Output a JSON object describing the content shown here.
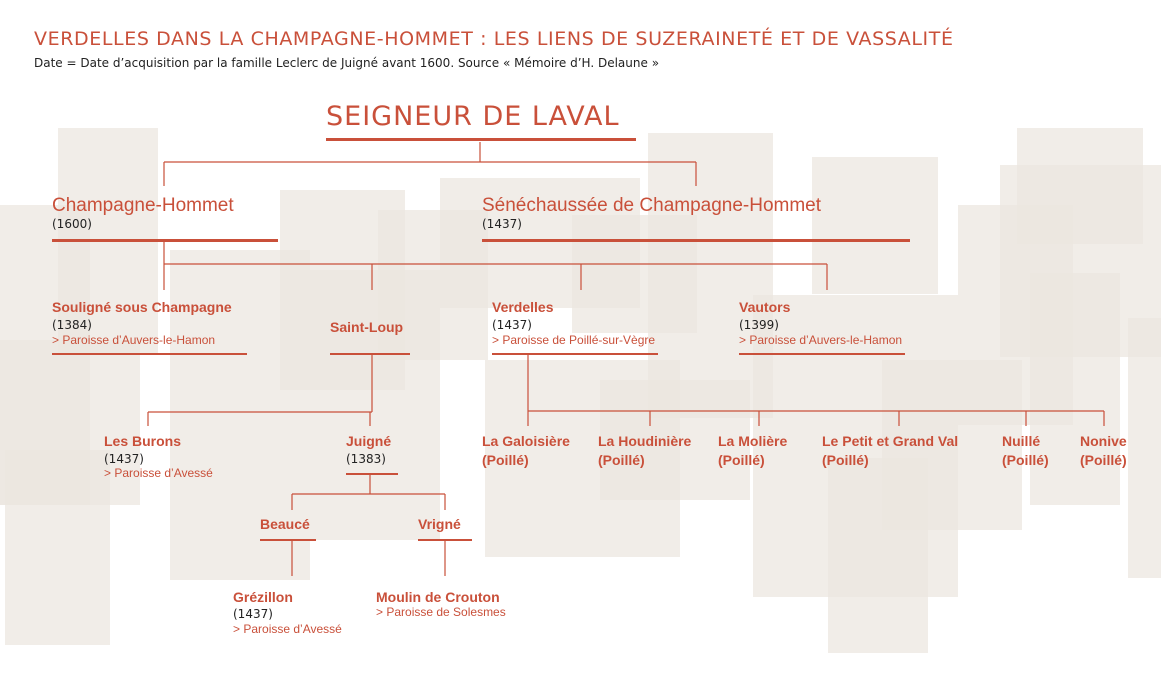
{
  "header": {
    "title": "VERDELLES DANS LA CHAMPAGNE-HOMMET : LES LIENS DE SUZERAINETÉ ET DE VASSALITÉ",
    "subtitle": "Date = Date d’acquisition par la famille Leclerc de Juigné avant 1600. Source « Mémoire d’H. Delaune »"
  },
  "colors": {
    "accent": "#c9503a",
    "text": "#222222",
    "background_blocks": "#ebe6df"
  },
  "root": {
    "name": "SEIGNEUR DE LAVAL"
  },
  "level1": [
    {
      "name": "Champagne-Hommet",
      "date": "(1600)"
    },
    {
      "name": "Sénéchaussée de Champagne-Hommet",
      "date": "(1437)"
    }
  ],
  "level2": {
    "souligne": {
      "name": "Souligné sous Champagne",
      "date": "(1384)",
      "parish": "> Paroisse d’Auvers-le-Hamon"
    },
    "saint_loup": {
      "name": "Saint-Loup"
    },
    "verdelles": {
      "name": "Verdelles",
      "date": "(1437)",
      "parish": "> Paroisse de Poillé-sur-Vègre"
    },
    "vautors": {
      "name": "Vautors",
      "date": "(1399)",
      "parish": "> Paroisse d’Auvers-le-Hamon"
    }
  },
  "level3": {
    "les_burons": {
      "name": "Les Burons",
      "date": "(1437)",
      "parish": "> Paroisse d’Avessé"
    },
    "juigne": {
      "name": "Juigné",
      "date": "(1383)"
    },
    "verdelles_children": [
      {
        "name": "La Galoisière",
        "sub": "(Poillé)"
      },
      {
        "name": "La Houdinière",
        "sub": "(Poillé)"
      },
      {
        "name": "La Molière",
        "sub": "(Poillé)"
      },
      {
        "name": "Le Petit et Grand Val",
        "sub": "(Poillé)"
      },
      {
        "name": "Nuillé",
        "sub": "(Poillé)"
      },
      {
        "name": "Nonive",
        "sub": "(Poillé)"
      }
    ]
  },
  "level4": {
    "beauce": {
      "name": "Beaucé"
    },
    "vrigne": {
      "name": "Vrigné"
    }
  },
  "level5": {
    "grezillon": {
      "name": "Grézillon",
      "date": "(1437)",
      "parish": "> Paroisse d’Avessé"
    },
    "moulin": {
      "name": "Moulin de Crouton",
      "parish": "> Paroisse de Solesmes"
    }
  }
}
